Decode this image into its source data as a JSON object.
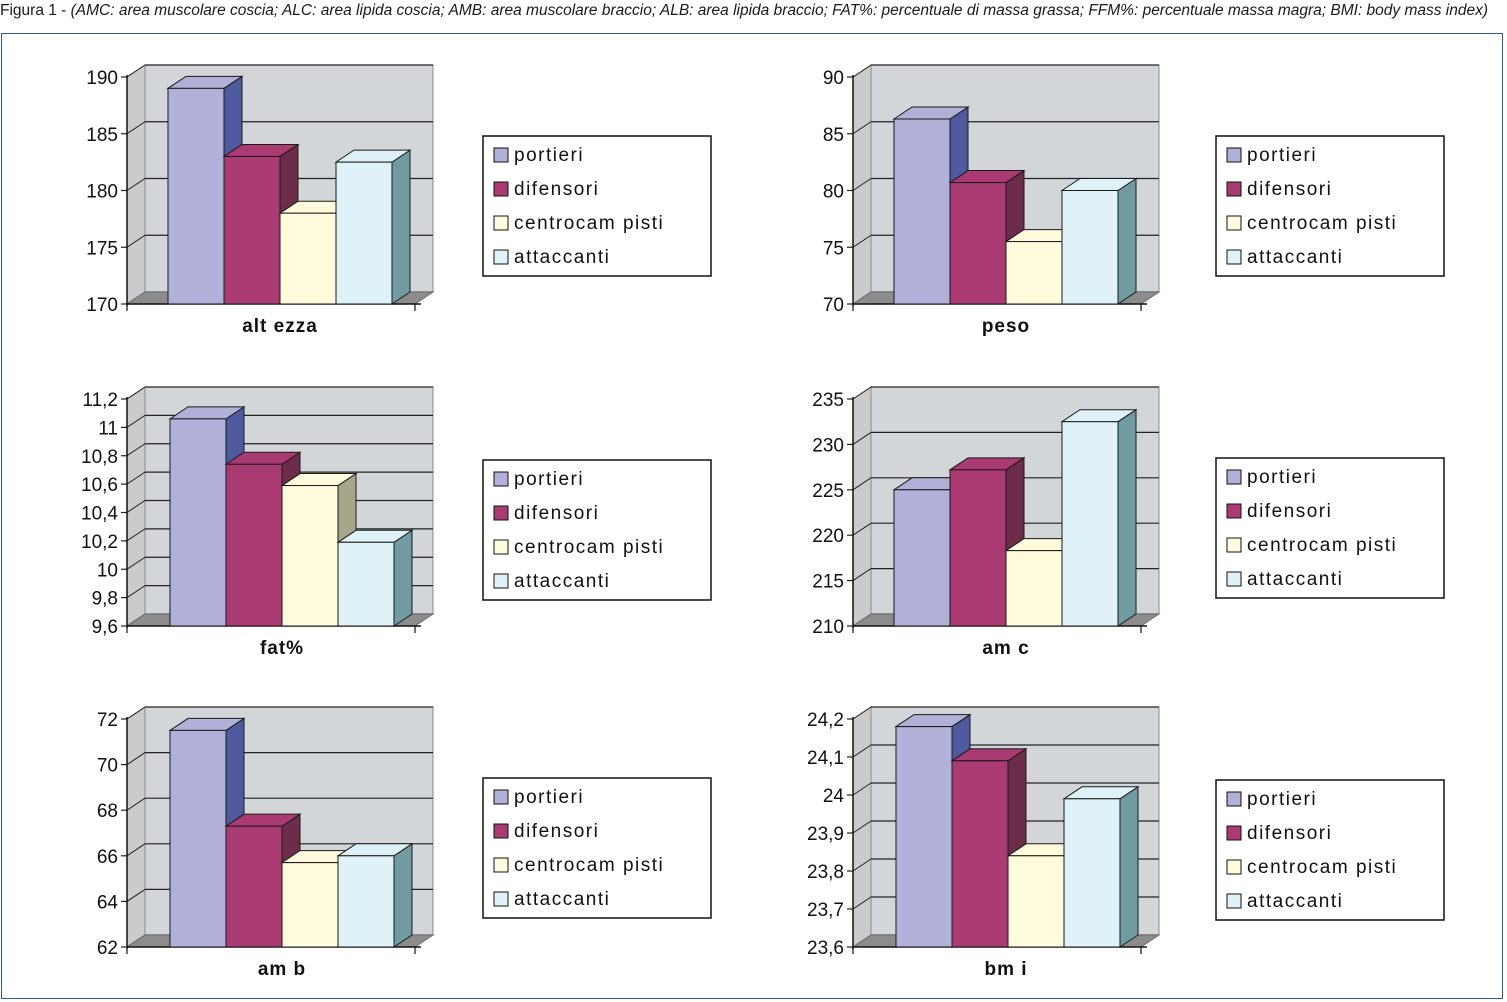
{
  "caption": {
    "lead": "Figura 1 - ",
    "text": "(AMC: area muscolare coscia; ALC: area lipida coscia; AMB: area muscolare braccio; ALB: area lipida braccio; FAT%: percentuale di massa grassa; FFM%: percentuale massa magra; BMI: body mass index)"
  },
  "colors": {
    "frame": "#2e5a8a",
    "plot_bg": "#d3d6d8",
    "floor": "#8c8c8c",
    "series": [
      {
        "front": "#b0b0d9",
        "side": "#4f5a9e"
      },
      {
        "front": "#a93b72",
        "side": "#6e2c4b"
      },
      {
        "front": "#fffbdc",
        "side": "#a8a68a"
      },
      {
        "front": "#def2f7",
        "side": "#6f9ba1"
      }
    ]
  },
  "legend": [
    "portieri",
    "difensori",
    "centrocam pisti",
    "attaccanti"
  ],
  "chart_data": [
    {
      "type": "bar",
      "xlabel": "alt ezza",
      "categories": [
        "portieri",
        "difensori",
        "centrocam pisti",
        "attaccanti"
      ],
      "values": [
        189,
        183,
        178,
        182.5
      ],
      "ylim": [
        170,
        190
      ],
      "ticks": [
        170,
        175,
        180,
        185,
        190
      ],
      "tick_labels": [
        "170",
        "175",
        "180",
        "185",
        "190"
      ],
      "grid": true,
      "legend": "right"
    },
    {
      "type": "bar",
      "xlabel": "peso",
      "categories": [
        "portieri",
        "difensori",
        "centrocam pisti",
        "attaccanti"
      ],
      "values": [
        86.3,
        80.7,
        75.5,
        80
      ],
      "ylim": [
        70,
        90
      ],
      "ticks": [
        70,
        75,
        80,
        85,
        90
      ],
      "tick_labels": [
        "70",
        "75",
        "80",
        "85",
        "90"
      ],
      "grid": true,
      "legend": "right"
    },
    {
      "type": "bar",
      "xlabel": "fat%",
      "categories": [
        "portieri",
        "difensori",
        "centrocam pisti",
        "attaccanti"
      ],
      "values": [
        11.06,
        10.74,
        10.59,
        10.19
      ],
      "ylim": [
        9.6,
        11.2
      ],
      "ticks": [
        9.6,
        9.8,
        10,
        10.2,
        10.4,
        10.6,
        10.8,
        11,
        11.2
      ],
      "tick_labels": [
        "9,6",
        "9,8",
        "10",
        "10,2",
        "10,4",
        "10,6",
        "10,8",
        "11",
        "11,2"
      ],
      "grid": true,
      "legend": "right"
    },
    {
      "type": "bar",
      "xlabel": "am c",
      "categories": [
        "portieri",
        "difensori",
        "centrocam pisti",
        "attaccanti"
      ],
      "values": [
        225,
        227.2,
        218.3,
        232.5
      ],
      "ylim": [
        210,
        235
      ],
      "ticks": [
        210,
        215,
        220,
        225,
        230,
        235
      ],
      "tick_labels": [
        "210",
        "215",
        "220",
        "225",
        "230",
        "235"
      ],
      "grid": true,
      "legend": "right"
    },
    {
      "type": "bar",
      "xlabel": "am b",
      "categories": [
        "portieri",
        "difensori",
        "centrocam pisti",
        "attaccanti"
      ],
      "values": [
        71.5,
        67.3,
        65.7,
        66
      ],
      "ylim": [
        62,
        72
      ],
      "ticks": [
        62,
        64,
        66,
        68,
        70,
        72
      ],
      "tick_labels": [
        "62",
        "64",
        "66",
        "68",
        "70",
        "72"
      ],
      "grid": true,
      "legend": "right"
    },
    {
      "type": "bar",
      "xlabel": "bm i",
      "categories": [
        "portieri",
        "difensori",
        "centrocam pisti",
        "attaccanti"
      ],
      "values": [
        24.18,
        24.09,
        23.84,
        23.99
      ],
      "ylim": [
        23.6,
        24.2
      ],
      "ticks": [
        23.6,
        23.7,
        23.8,
        23.9,
        24,
        24.1,
        24.2
      ],
      "tick_labels": [
        "23,6",
        "23,7",
        "23,8",
        "23,9",
        "24",
        "24,1",
        "24,2"
      ],
      "grid": true,
      "legend": "right"
    }
  ]
}
